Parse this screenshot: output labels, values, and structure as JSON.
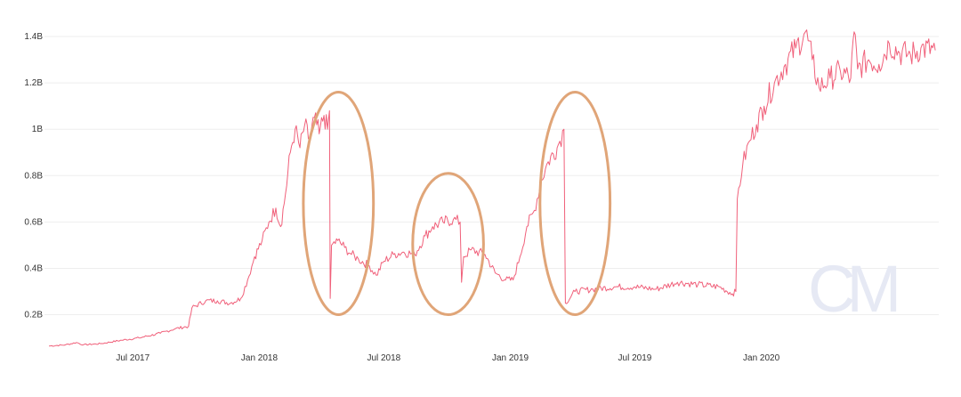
{
  "chart_data": {
    "type": "line",
    "title": "",
    "xlabel": "",
    "ylabel": "",
    "xlim": [
      "2017-03-01",
      "2020-09-15"
    ],
    "ylim": [
      0.06,
      1.45
    ],
    "y_unit": "B",
    "grid": {
      "horizontal": true,
      "vertical": false
    },
    "legend": "none",
    "colors": {
      "series": "#f0607a",
      "annotation": "#e0a578",
      "grid": "#eeeeee",
      "watermark": "#e6e9f4",
      "text": "#333333"
    },
    "y_ticks": [
      {
        "value": 0.2,
        "label": "0.2B"
      },
      {
        "value": 0.4,
        "label": "0.4B"
      },
      {
        "value": 0.6,
        "label": "0.6B"
      },
      {
        "value": 0.8,
        "label": "0.8B"
      },
      {
        "value": 1.0,
        "label": "1B"
      },
      {
        "value": 1.2,
        "label": "1.2B"
      },
      {
        "value": 1.4,
        "label": "1.4B"
      }
    ],
    "x_ticks": [
      {
        "value": "2017-07-01",
        "label": "Jul 2017"
      },
      {
        "value": "2018-01-01",
        "label": "Jan 2018"
      },
      {
        "value": "2018-07-01",
        "label": "Jul 2018"
      },
      {
        "value": "2019-01-01",
        "label": "Jan 2019"
      },
      {
        "value": "2019-07-01",
        "label": "Jul 2019"
      },
      {
        "value": "2020-01-01",
        "label": "Jan 2020"
      }
    ],
    "series": [
      {
        "points": [
          [
            "2017-03-01",
            0.065
          ],
          [
            "2017-03-25",
            0.07
          ],
          [
            "2017-04-10",
            0.08
          ],
          [
            "2017-04-20",
            0.07
          ],
          [
            "2017-05-15",
            0.075
          ],
          [
            "2017-06-15",
            0.09
          ],
          [
            "2017-07-10",
            0.1
          ],
          [
            "2017-08-10",
            0.12
          ],
          [
            "2017-09-01",
            0.14
          ],
          [
            "2017-09-20",
            0.15
          ],
          [
            "2017-09-25",
            0.23
          ],
          [
            "2017-10-15",
            0.26
          ],
          [
            "2017-11-01",
            0.26
          ],
          [
            "2017-11-20",
            0.25
          ],
          [
            "2017-12-05",
            0.27
          ],
          [
            "2017-12-15",
            0.35
          ],
          [
            "2017-12-25",
            0.45
          ],
          [
            "2018-01-05",
            0.52
          ],
          [
            "2018-01-15",
            0.6
          ],
          [
            "2018-01-25",
            0.66
          ],
          [
            "2018-02-01",
            0.58
          ],
          [
            "2018-02-08",
            0.72
          ],
          [
            "2018-02-15",
            0.9
          ],
          [
            "2018-02-22",
            1.0
          ],
          [
            "2018-03-01",
            0.92
          ],
          [
            "2018-03-08",
            1.02
          ],
          [
            "2018-03-15",
            0.95
          ],
          [
            "2018-03-22",
            1.05
          ],
          [
            "2018-03-29",
            0.98
          ],
          [
            "2018-04-05",
            1.06
          ],
          [
            "2018-04-10",
            1.0
          ],
          [
            "2018-04-13",
            1.08
          ],
          [
            "2018-04-14",
            0.27
          ],
          [
            "2018-04-16",
            0.5
          ],
          [
            "2018-04-25",
            0.52
          ],
          [
            "2018-05-05",
            0.49
          ],
          [
            "2018-05-15",
            0.46
          ],
          [
            "2018-05-25",
            0.44
          ],
          [
            "2018-06-10",
            0.41
          ],
          [
            "2018-06-20",
            0.37
          ],
          [
            "2018-07-01",
            0.43
          ],
          [
            "2018-07-15",
            0.46
          ],
          [
            "2018-07-30",
            0.47
          ],
          [
            "2018-08-15",
            0.46
          ],
          [
            "2018-08-30",
            0.54
          ],
          [
            "2018-09-10",
            0.58
          ],
          [
            "2018-09-25",
            0.6
          ],
          [
            "2018-10-10",
            0.61
          ],
          [
            "2018-10-20",
            0.6
          ],
          [
            "2018-10-22",
            0.34
          ],
          [
            "2018-10-25",
            0.45
          ],
          [
            "2018-11-05",
            0.48
          ],
          [
            "2018-11-25",
            0.46
          ],
          [
            "2018-12-10",
            0.38
          ],
          [
            "2018-12-25",
            0.35
          ],
          [
            "2019-01-05",
            0.35
          ],
          [
            "2019-01-15",
            0.45
          ],
          [
            "2019-01-25",
            0.58
          ],
          [
            "2019-02-05",
            0.65
          ],
          [
            "2019-02-15",
            0.78
          ],
          [
            "2019-02-25",
            0.86
          ],
          [
            "2019-03-10",
            0.92
          ],
          [
            "2019-03-20",
            1.0
          ],
          [
            "2019-03-22",
            0.25
          ],
          [
            "2019-04-05",
            0.3
          ],
          [
            "2019-05-01",
            0.31
          ],
          [
            "2019-06-01",
            0.32
          ],
          [
            "2019-07-01",
            0.32
          ],
          [
            "2019-08-01",
            0.31
          ],
          [
            "2019-09-01",
            0.34
          ],
          [
            "2019-10-01",
            0.33
          ],
          [
            "2019-11-01",
            0.32
          ],
          [
            "2019-11-20",
            0.29
          ],
          [
            "2019-11-25",
            0.3
          ],
          [
            "2019-11-27",
            0.7
          ],
          [
            "2019-12-05",
            0.85
          ],
          [
            "2019-12-15",
            0.95
          ],
          [
            "2019-12-25",
            1.02
          ],
          [
            "2020-01-05",
            1.1
          ],
          [
            "2020-01-20",
            1.2
          ],
          [
            "2020-02-05",
            1.28
          ],
          [
            "2020-02-20",
            1.35
          ],
          [
            "2020-03-05",
            1.42
          ],
          [
            "2020-03-15",
            1.3
          ],
          [
            "2020-03-25",
            1.18
          ],
          [
            "2020-04-10",
            1.22
          ],
          [
            "2020-04-25",
            1.25
          ],
          [
            "2020-05-10",
            1.22
          ],
          [
            "2020-05-15",
            1.42
          ],
          [
            "2020-05-20",
            1.26
          ],
          [
            "2020-06-05",
            1.3
          ],
          [
            "2020-06-20",
            1.28
          ],
          [
            "2020-07-05",
            1.37
          ],
          [
            "2020-07-20",
            1.33
          ],
          [
            "2020-08-05",
            1.32
          ],
          [
            "2020-08-20",
            1.35
          ],
          [
            "2020-09-10",
            1.34
          ]
        ]
      }
    ],
    "annotations": [
      {
        "shape": "ellipse",
        "x_range": [
          "2018-03-06",
          "2018-06-16"
        ],
        "y_range": [
          0.2,
          1.16
        ]
      },
      {
        "shape": "ellipse",
        "x_range": [
          "2018-08-12",
          "2018-11-23"
        ],
        "y_range": [
          0.2,
          0.81
        ]
      },
      {
        "shape": "ellipse",
        "x_range": [
          "2019-02-13",
          "2019-05-26"
        ],
        "y_range": [
          0.2,
          1.16
        ]
      }
    ],
    "watermark": {
      "text": "CM"
    }
  }
}
